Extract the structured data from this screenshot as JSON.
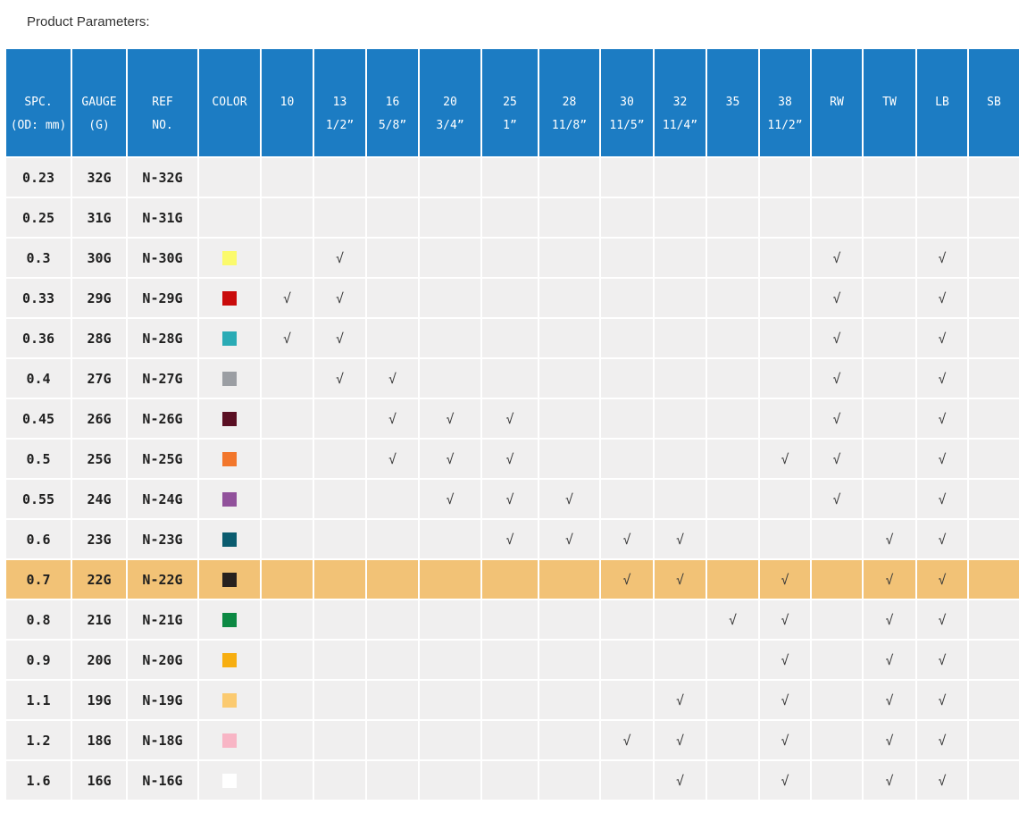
{
  "title": "Product Parameters:",
  "colors": {
    "header_bg": "#1c7cc3",
    "header_text": "#ffffff",
    "row_bg": "#f0efef",
    "highlight_bg": "#f2c276",
    "grid_line": "#ffffff",
    "text": "#1f1f1f",
    "check": "#3a3a3a"
  },
  "table": {
    "check_glyph": "√",
    "columns": [
      {
        "id": "spc",
        "line1": "SPC.",
        "line2": "(OD: mm)"
      },
      {
        "id": "gauge",
        "line1": "GAUGE",
        "line2": "(G)"
      },
      {
        "id": "ref",
        "line1": "REF",
        "line2": "NO."
      },
      {
        "id": "color",
        "line1": "COLOR",
        "line2": ""
      },
      {
        "id": "c10",
        "line1": "10",
        "line2": ""
      },
      {
        "id": "c13",
        "line1": "13",
        "line2": "1/2”"
      },
      {
        "id": "c16",
        "line1": "16",
        "line2": "5/8”"
      },
      {
        "id": "c20",
        "line1": "20",
        "line2": "3/4”"
      },
      {
        "id": "c25",
        "line1": "25",
        "line2": "1”"
      },
      {
        "id": "c28",
        "line1": "28",
        "line2": "11/8”"
      },
      {
        "id": "c30",
        "line1": "30",
        "line2": "11/5”"
      },
      {
        "id": "c32",
        "line1": "32",
        "line2": "11/4”"
      },
      {
        "id": "c35",
        "line1": "35",
        "line2": ""
      },
      {
        "id": "c38",
        "line1": "38",
        "line2": "11/2”"
      },
      {
        "id": "RW",
        "line1": "RW",
        "line2": ""
      },
      {
        "id": "TW",
        "line1": "TW",
        "line2": ""
      },
      {
        "id": "LB",
        "line1": "LB",
        "line2": ""
      },
      {
        "id": "SB",
        "line1": "SB",
        "line2": ""
      }
    ],
    "rows": [
      {
        "spc": "0.23",
        "gauge": "32G",
        "ref": "N-32G",
        "color": null,
        "checks": [],
        "highlight": false
      },
      {
        "spc": "0.25",
        "gauge": "31G",
        "ref": "N-31G",
        "color": null,
        "checks": [],
        "highlight": false
      },
      {
        "spc": "0.3",
        "gauge": "30G",
        "ref": "N-30G",
        "color": "#fbfa6c",
        "checks": [
          "c13",
          "RW",
          "LB"
        ],
        "highlight": false
      },
      {
        "spc": "0.33",
        "gauge": "29G",
        "ref": "N-29G",
        "color": "#c90b0b",
        "checks": [
          "c10",
          "c13",
          "RW",
          "LB"
        ],
        "highlight": false
      },
      {
        "spc": "0.36",
        "gauge": "28G",
        "ref": "N-28G",
        "color": "#2aabb5",
        "checks": [
          "c10",
          "c13",
          "RW",
          "LB"
        ],
        "highlight": false
      },
      {
        "spc": "0.4",
        "gauge": "27G",
        "ref": "N-27G",
        "color": "#9b9ea3",
        "checks": [
          "c13",
          "c16",
          "RW",
          "LB"
        ],
        "highlight": false
      },
      {
        "spc": "0.45",
        "gauge": "26G",
        "ref": "N-26G",
        "color": "#5a0f23",
        "checks": [
          "c16",
          "c20",
          "c25",
          "RW",
          "LB"
        ],
        "highlight": false
      },
      {
        "spc": "0.5",
        "gauge": "25G",
        "ref": "N-25G",
        "color": "#f2762b",
        "checks": [
          "c16",
          "c20",
          "c25",
          "c38",
          "RW",
          "LB"
        ],
        "highlight": false
      },
      {
        "spc": "0.55",
        "gauge": "24G",
        "ref": "N-24G",
        "color": "#91519b",
        "checks": [
          "c20",
          "c25",
          "c28",
          "RW",
          "LB"
        ],
        "highlight": false
      },
      {
        "spc": "0.6",
        "gauge": "23G",
        "ref": "N-23G",
        "color": "#0b5c6f",
        "checks": [
          "c25",
          "c28",
          "c30",
          "c32",
          "TW",
          "LB"
        ],
        "highlight": false
      },
      {
        "spc": "0.7",
        "gauge": "22G",
        "ref": "N-22G",
        "color": "#28211e",
        "checks": [
          "c30",
          "c32",
          "c38",
          "TW",
          "LB"
        ],
        "highlight": true
      },
      {
        "spc": "0.8",
        "gauge": "21G",
        "ref": "N-21G",
        "color": "#0c8943",
        "checks": [
          "c35",
          "c38",
          "TW",
          "LB"
        ],
        "highlight": false
      },
      {
        "spc": "0.9",
        "gauge": "20G",
        "ref": "N-20G",
        "color": "#f7ae10",
        "checks": [
          "c38",
          "TW",
          "LB"
        ],
        "highlight": false
      },
      {
        "spc": "1.1",
        "gauge": "19G",
        "ref": "N-19G",
        "color": "#fbca70",
        "checks": [
          "c32",
          "c38",
          "TW",
          "LB"
        ],
        "highlight": false
      },
      {
        "spc": "1.2",
        "gauge": "18G",
        "ref": "N-18G",
        "color": "#f8b5c5",
        "checks": [
          "c30",
          "c32",
          "c38",
          "TW",
          "LB"
        ],
        "highlight": false
      },
      {
        "spc": "1.6",
        "gauge": "16G",
        "ref": "N-16G",
        "color": "#ffffff",
        "checks": [
          "c32",
          "c38",
          "TW",
          "LB"
        ],
        "highlight": false
      }
    ]
  }
}
